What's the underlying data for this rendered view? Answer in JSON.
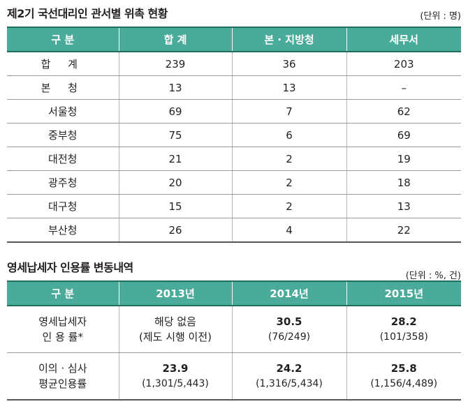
{
  "table1": {
    "title": "제2기 국선대리인 관서별 위촉 현황",
    "unit": "(단위 : 명)",
    "headers": [
      "구 분",
      "합 계",
      "본 · 지방청",
      "세무서"
    ],
    "rows": [
      {
        "label": "합 계",
        "total": "239",
        "regional": "36",
        "district": "203"
      },
      {
        "label": "본 청",
        "total": "13",
        "regional": "13",
        "district": "–"
      },
      {
        "label": "서울청",
        "total": "69",
        "regional": "7",
        "district": "62"
      },
      {
        "label": "중부청",
        "total": "75",
        "regional": "6",
        "district": "69"
      },
      {
        "label": "대전청",
        "total": "21",
        "regional": "2",
        "district": "19"
      },
      {
        "label": "광주청",
        "total": "20",
        "regional": "2",
        "district": "18"
      },
      {
        "label": "대구청",
        "total": "15",
        "regional": "2",
        "district": "13"
      },
      {
        "label": "부산청",
        "total": "26",
        "regional": "4",
        "district": "22"
      }
    ]
  },
  "table2": {
    "title": "영세납세자 인용률 변동내역",
    "unit": "(단위 : %, 건)",
    "headers": [
      "구 분",
      "2013년",
      "2014년",
      "2015년"
    ],
    "row1": {
      "label_line1": "영세납세자",
      "label_line2": "인 용 률*",
      "y2013_line1": "해당 없음",
      "y2013_line2": "(제도 시행 이전)",
      "y2014_value": "30.5",
      "y2014_detail": "(76/249)",
      "y2015_value": "28.2",
      "y2015_detail": "(101/358)"
    },
    "row2": {
      "label_line1": "이의 · 심사",
      "label_line2": "평균인용률",
      "y2013_value": "23.9",
      "y2013_detail": "(1,301/5,443)",
      "y2014_value": "24.2",
      "y2014_detail": "(1,316/5,434)",
      "y2015_value": "25.8",
      "y2015_detail": "(1,156/4,489)"
    }
  }
}
